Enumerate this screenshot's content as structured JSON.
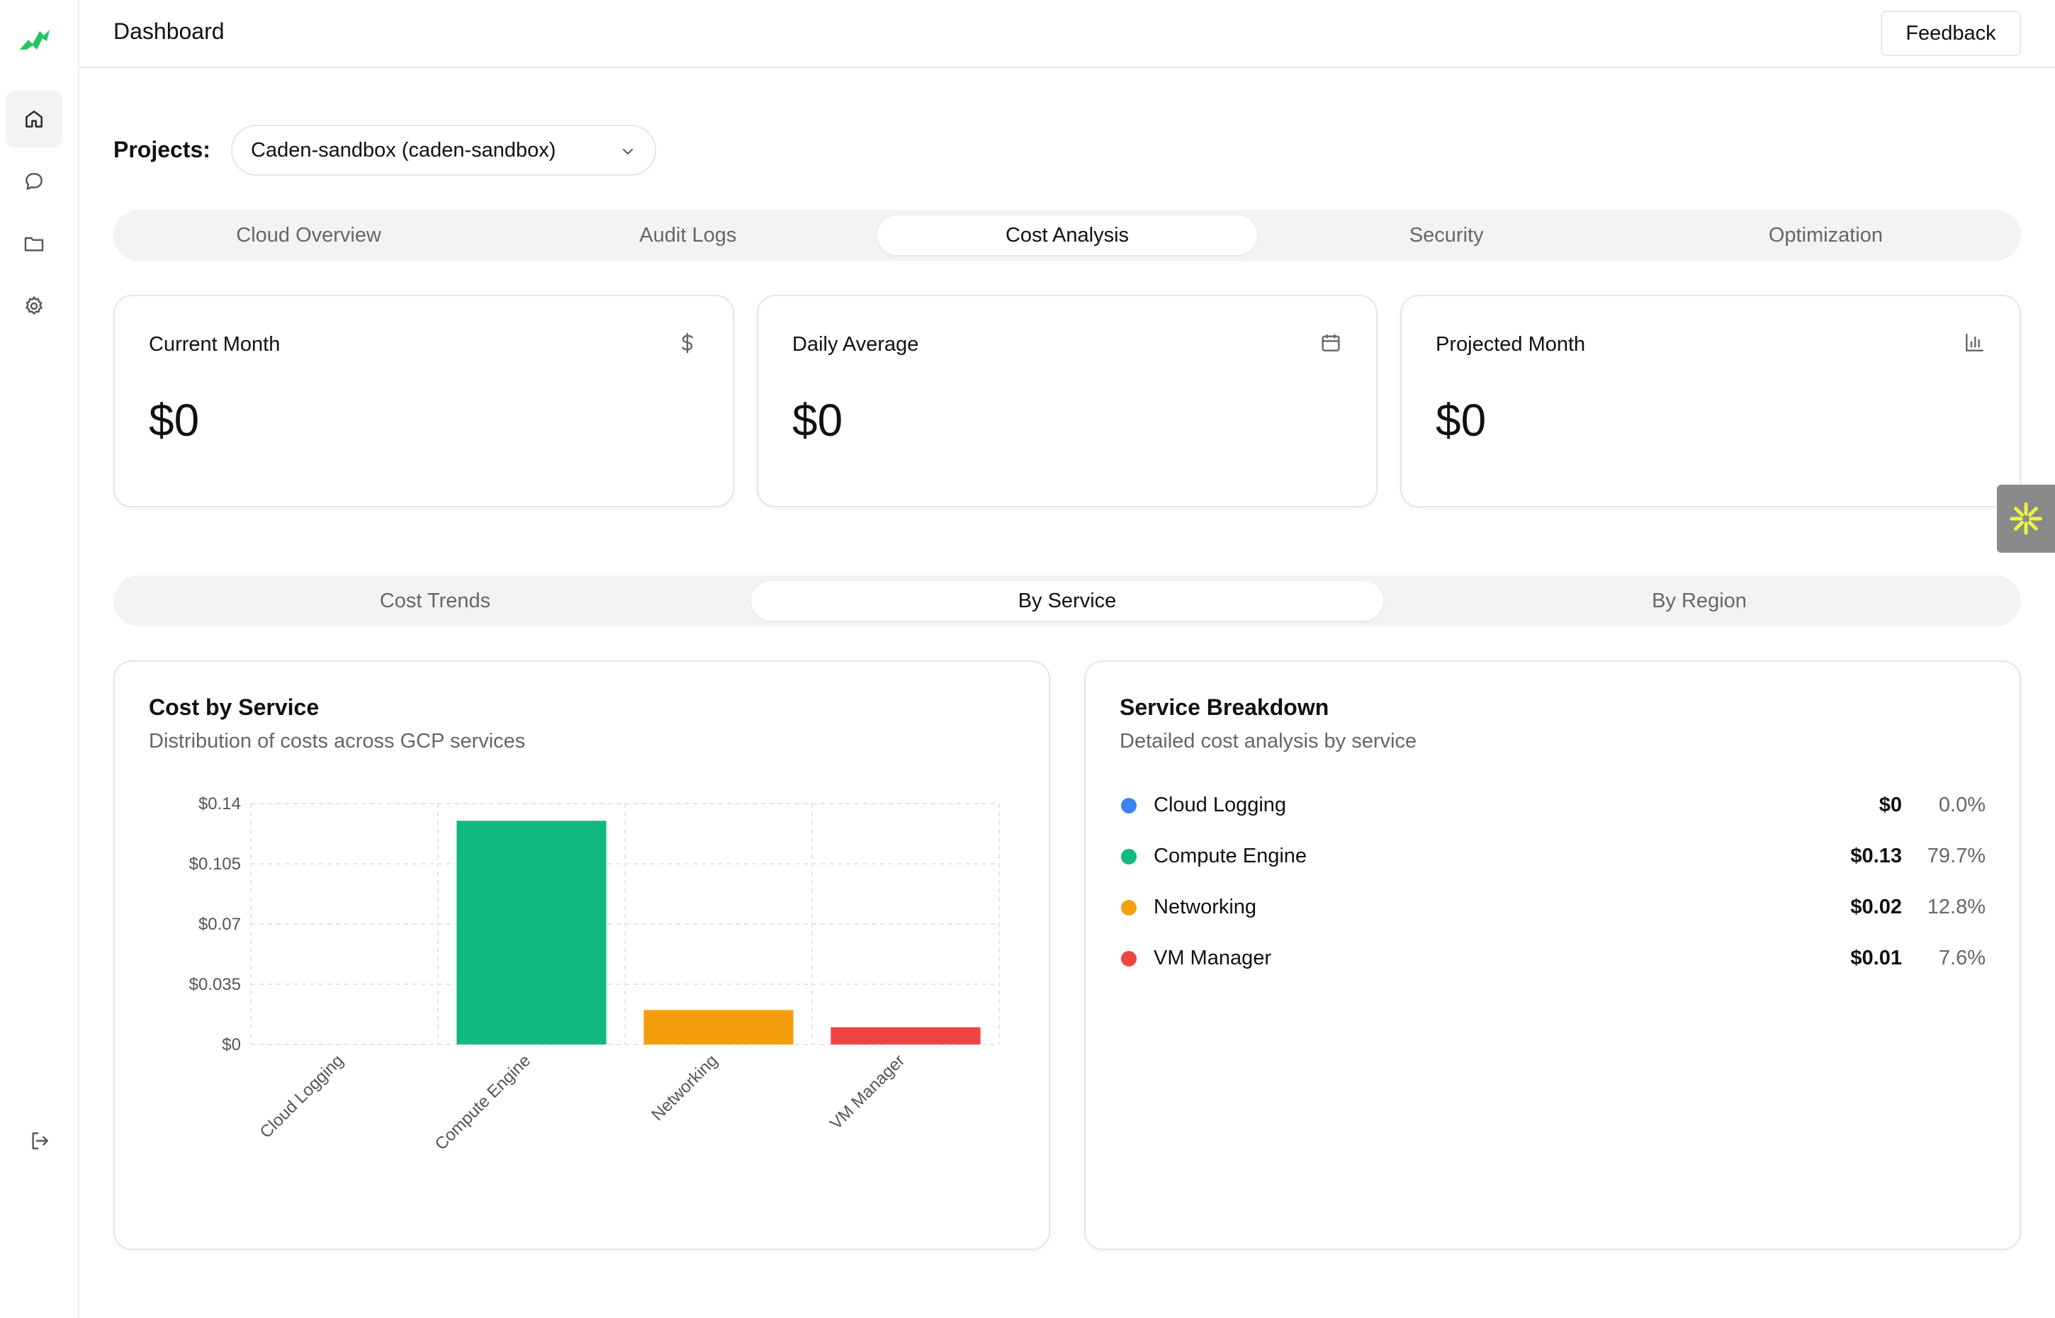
{
  "header": {
    "title": "Dashboard",
    "feedback_label": "Feedback"
  },
  "sidebar": {
    "items": [
      {
        "icon": "home-icon",
        "active": true
      },
      {
        "icon": "chat-icon",
        "active": false
      },
      {
        "icon": "folder-icon",
        "active": false
      },
      {
        "icon": "gear-icon",
        "active": false
      }
    ],
    "bottom_icon": "logout-icon"
  },
  "projects": {
    "label": "Projects:",
    "selected": "Caden-sandbox (caden-sandbox)"
  },
  "main_tabs": [
    {
      "label": "Cloud Overview",
      "active": false
    },
    {
      "label": "Audit Logs",
      "active": false
    },
    {
      "label": "Cost Analysis",
      "active": true
    },
    {
      "label": "Security",
      "active": false
    },
    {
      "label": "Optimization",
      "active": false
    }
  ],
  "stats": [
    {
      "label": "Current Month",
      "value": "$0",
      "icon": "dollar-icon"
    },
    {
      "label": "Daily Average",
      "value": "$0",
      "icon": "calendar-icon"
    },
    {
      "label": "Projected Month",
      "value": "$0",
      "icon": "bar-chart-icon"
    }
  ],
  "sub_tabs": [
    {
      "label": "Cost Trends",
      "active": false
    },
    {
      "label": "By Service",
      "active": true
    },
    {
      "label": "By Region",
      "active": false
    }
  ],
  "cost_by_service": {
    "title": "Cost by Service",
    "subtitle": "Distribution of costs across GCP services"
  },
  "chart_data": {
    "type": "bar",
    "categories": [
      "Cloud Logging",
      "Compute Engine",
      "Networking",
      "VM Manager"
    ],
    "values": [
      0,
      0.13,
      0.02,
      0.01
    ],
    "colors": [
      "#3b82f6",
      "#10b981",
      "#f59e0b",
      "#ef4444"
    ],
    "yticks": [
      "$0",
      "$0.035",
      "$0.07",
      "$0.105",
      "$0.14"
    ],
    "ylim": [
      0,
      0.14
    ],
    "grid": true,
    "title": "",
    "xlabel": "",
    "ylabel": ""
  },
  "breakdown": {
    "title": "Service Breakdown",
    "subtitle": "Detailed cost analysis by service",
    "rows": [
      {
        "name": "Cloud Logging",
        "amount": "$0",
        "percent": "0.0%",
        "color": "#3b82f6"
      },
      {
        "name": "Compute Engine",
        "amount": "$0.13",
        "percent": "79.7%",
        "color": "#10b981"
      },
      {
        "name": "Networking",
        "amount": "$0.02",
        "percent": "12.8%",
        "color": "#f59e0b"
      },
      {
        "name": "VM Manager",
        "amount": "$0.01",
        "percent": "7.6%",
        "color": "#ef4444"
      }
    ]
  },
  "widget_icon": "asterisk-icon"
}
